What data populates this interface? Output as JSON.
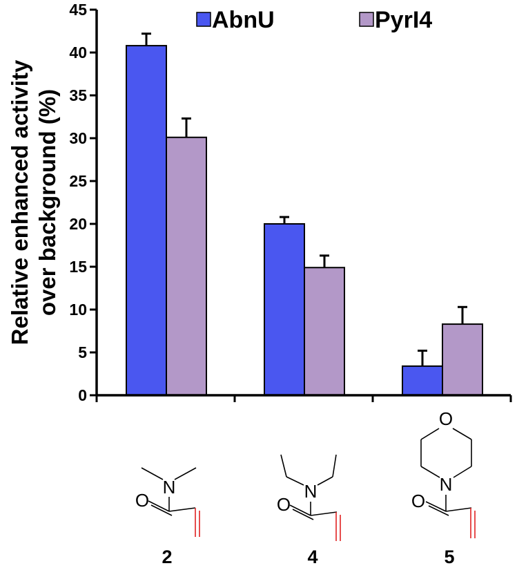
{
  "chart_data": {
    "type": "bar",
    "ylabel_lines": [
      "Relative enhanced activity",
      "over background (%)"
    ],
    "ylim": [
      0,
      45
    ],
    "yticks": [
      0,
      5,
      10,
      15,
      20,
      25,
      30,
      35,
      40,
      45
    ],
    "categories": [
      "2",
      "4",
      "5"
    ],
    "legend_position": "top",
    "series": [
      {
        "name": "AbnU",
        "color": "#4a57f0",
        "values": [
          40.8,
          20.0,
          3.4
        ],
        "errors": [
          1.4,
          0.8,
          1.8
        ]
      },
      {
        "name": "PyrI4",
        "color": "#b398c8",
        "values": [
          30.1,
          14.9,
          8.3
        ],
        "errors": [
          2.2,
          1.4,
          2.0
        ]
      }
    ],
    "structures": [
      {
        "compound": "2",
        "atoms": [
          "N",
          "O"
        ]
      },
      {
        "compound": "4",
        "atoms": [
          "N",
          "O"
        ]
      },
      {
        "compound": "5",
        "atoms": [
          "O",
          "N",
          "O"
        ]
      }
    ]
  }
}
